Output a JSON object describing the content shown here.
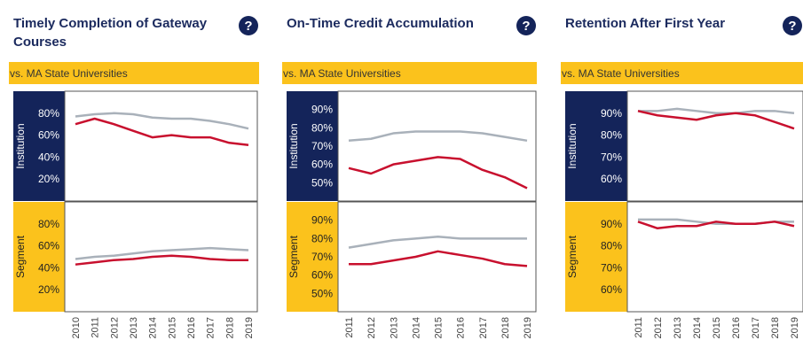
{
  "chart_data": [
    {
      "type": "line",
      "title": "Timely Completion of Gateway Courses",
      "subtitle": "vs. MA State Universities",
      "x": [
        2010,
        2011,
        2012,
        2013,
        2014,
        2015,
        2016,
        2017,
        2018,
        2019
      ],
      "rows": [
        {
          "label": "Institution",
          "ylim": [
            0,
            100
          ],
          "yticks": [
            {
              "value": 20,
              "label": "20%"
            },
            {
              "value": 40,
              "label": "40%"
            },
            {
              "value": 60,
              "label": "60%"
            },
            {
              "value": 80,
              "label": "80%"
            }
          ],
          "series": [
            {
              "color": "#a9b1ba",
              "values": [
                77,
                79,
                80,
                79,
                76,
                75,
                75,
                73,
                70,
                66
              ]
            },
            {
              "color": "#c8102e",
              "values": [
                70,
                75,
                70,
                64,
                58,
                60,
                58,
                58,
                53,
                51
              ]
            }
          ]
        },
        {
          "label": "Segment",
          "ylim": [
            0,
            100
          ],
          "yticks": [
            {
              "value": 20,
              "label": "20%"
            },
            {
              "value": 40,
              "label": "40%"
            },
            {
              "value": 60,
              "label": "60%"
            },
            {
              "value": 80,
              "label": "80%"
            }
          ],
          "series": [
            {
              "color": "#a9b1ba",
              "values": [
                48,
                50,
                51,
                53,
                55,
                56,
                57,
                58,
                57,
                56
              ]
            },
            {
              "color": "#c8102e",
              "values": [
                43,
                45,
                47,
                48,
                50,
                51,
                50,
                48,
                47,
                47
              ]
            }
          ]
        }
      ]
    },
    {
      "type": "line",
      "title": "On-Time Credit Accumulation",
      "subtitle": "vs. MA State Universities",
      "x": [
        2011,
        2012,
        2013,
        2014,
        2015,
        2016,
        2017,
        2018,
        2019
      ],
      "rows": [
        {
          "label": "Institution",
          "ylim": [
            40,
            100
          ],
          "yticks": [
            {
              "value": 50,
              "label": "50%"
            },
            {
              "value": 60,
              "label": "60%"
            },
            {
              "value": 70,
              "label": "70%"
            },
            {
              "value": 80,
              "label": "80%"
            },
            {
              "value": 90,
              "label": "90%"
            }
          ],
          "series": [
            {
              "color": "#a9b1ba",
              "values": [
                73,
                74,
                77,
                78,
                78,
                78,
                77,
                75,
                73
              ]
            },
            {
              "color": "#c8102e",
              "values": [
                58,
                55,
                60,
                62,
                64,
                63,
                57,
                53,
                47
              ]
            }
          ]
        },
        {
          "label": "Segment",
          "ylim": [
            40,
            100
          ],
          "yticks": [
            {
              "value": 50,
              "label": "50%"
            },
            {
              "value": 60,
              "label": "60%"
            },
            {
              "value": 70,
              "label": "70%"
            },
            {
              "value": 80,
              "label": "80%"
            },
            {
              "value": 90,
              "label": "90%"
            }
          ],
          "series": [
            {
              "color": "#a9b1ba",
              "values": [
                75,
                77,
                79,
                80,
                81,
                80,
                80,
                80,
                80
              ]
            },
            {
              "color": "#c8102e",
              "values": [
                66,
                66,
                68,
                70,
                73,
                71,
                69,
                66,
                65
              ]
            }
          ]
        }
      ]
    },
    {
      "type": "line",
      "title": "Retention After First Year",
      "subtitle": "vs. MA State Universities",
      "x": [
        2011,
        2012,
        2013,
        2014,
        2015,
        2016,
        2017,
        2018,
        2019
      ],
      "rows": [
        {
          "label": "Institution",
          "ylim": [
            50,
            100
          ],
          "yticks": [
            {
              "value": 60,
              "label": "60%"
            },
            {
              "value": 70,
              "label": "70%"
            },
            {
              "value": 80,
              "label": "80%"
            },
            {
              "value": 90,
              "label": "90%"
            }
          ],
          "series": [
            {
              "color": "#a9b1ba",
              "values": [
                91,
                91,
                92,
                91,
                90,
                90,
                91,
                91,
                90
              ]
            },
            {
              "color": "#c8102e",
              "values": [
                91,
                89,
                88,
                87,
                89,
                90,
                89,
                86,
                83
              ]
            }
          ]
        },
        {
          "label": "Segment",
          "ylim": [
            50,
            100
          ],
          "yticks": [
            {
              "value": 60,
              "label": "60%"
            },
            {
              "value": 70,
              "label": "70%"
            },
            {
              "value": 80,
              "label": "80%"
            },
            {
              "value": 90,
              "label": "90%"
            }
          ],
          "series": [
            {
              "color": "#a9b1ba",
              "values": [
                92,
                92,
                92,
                91,
                90,
                90,
                90,
                91,
                91
              ]
            },
            {
              "color": "#c8102e",
              "values": [
                91,
                88,
                89,
                89,
                91,
                90,
                90,
                91,
                89
              ]
            }
          ]
        }
      ]
    }
  ]
}
